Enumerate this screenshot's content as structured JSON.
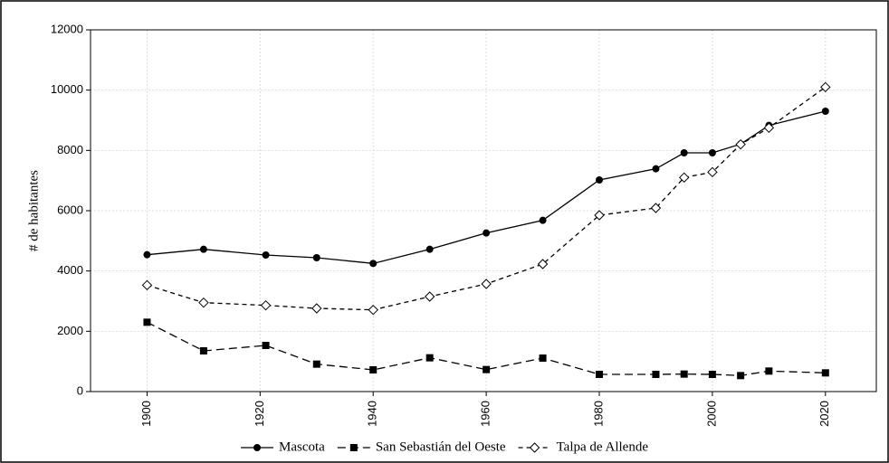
{
  "chart_data": {
    "type": "line",
    "y_label": "# de habitantes",
    "x": [
      1900,
      1910,
      1921,
      1930,
      1940,
      1950,
      1960,
      1970,
      1980,
      1990,
      1995,
      2000,
      2005,
      2010,
      2020
    ],
    "series": [
      {
        "name": "Mascota",
        "color": "#000000",
        "marker": "circle",
        "dash": "solid",
        "values": [
          4540,
          4720,
          4530,
          4440,
          4250,
          4720,
          5260,
          5680,
          7020,
          7390,
          7920,
          7920,
          8210,
          8830,
          9300
        ]
      },
      {
        "name": "San Sebastián del Oeste",
        "color": "#000000",
        "marker": "square",
        "dash": "long",
        "values": [
          2300,
          1350,
          1530,
          910,
          720,
          1120,
          730,
          1110,
          570,
          570,
          580,
          570,
          530,
          680,
          620
        ]
      },
      {
        "name": "Talpa de Allende",
        "color": "#000000",
        "marker": "diamond-open",
        "dash": "short",
        "values": [
          3530,
          2950,
          2860,
          2760,
          2710,
          3150,
          3570,
          4230,
          5850,
          6090,
          7100,
          7280,
          8200,
          8750,
          10100
        ]
      }
    ],
    "xlim": [
      1890,
      2029
    ],
    "xticks": [
      1900,
      1920,
      1940,
      1960,
      1980,
      2000,
      2020
    ],
    "ylim": [
      0,
      12000
    ],
    "yticks": [
      0,
      2000,
      4000,
      6000,
      8000,
      10000,
      12000
    ],
    "grid": true,
    "legend": "bottom"
  }
}
